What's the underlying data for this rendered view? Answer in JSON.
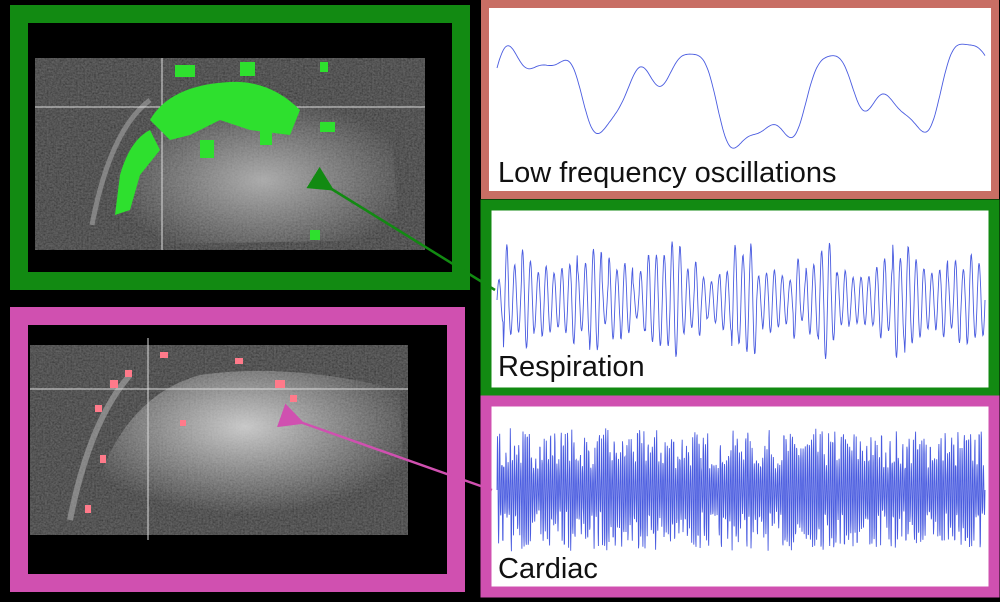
{
  "panels": [
    {
      "label": "Low frequency oscillations"
    },
    {
      "label": "Respiration"
    },
    {
      "label": "Cardiac"
    }
  ]
}
